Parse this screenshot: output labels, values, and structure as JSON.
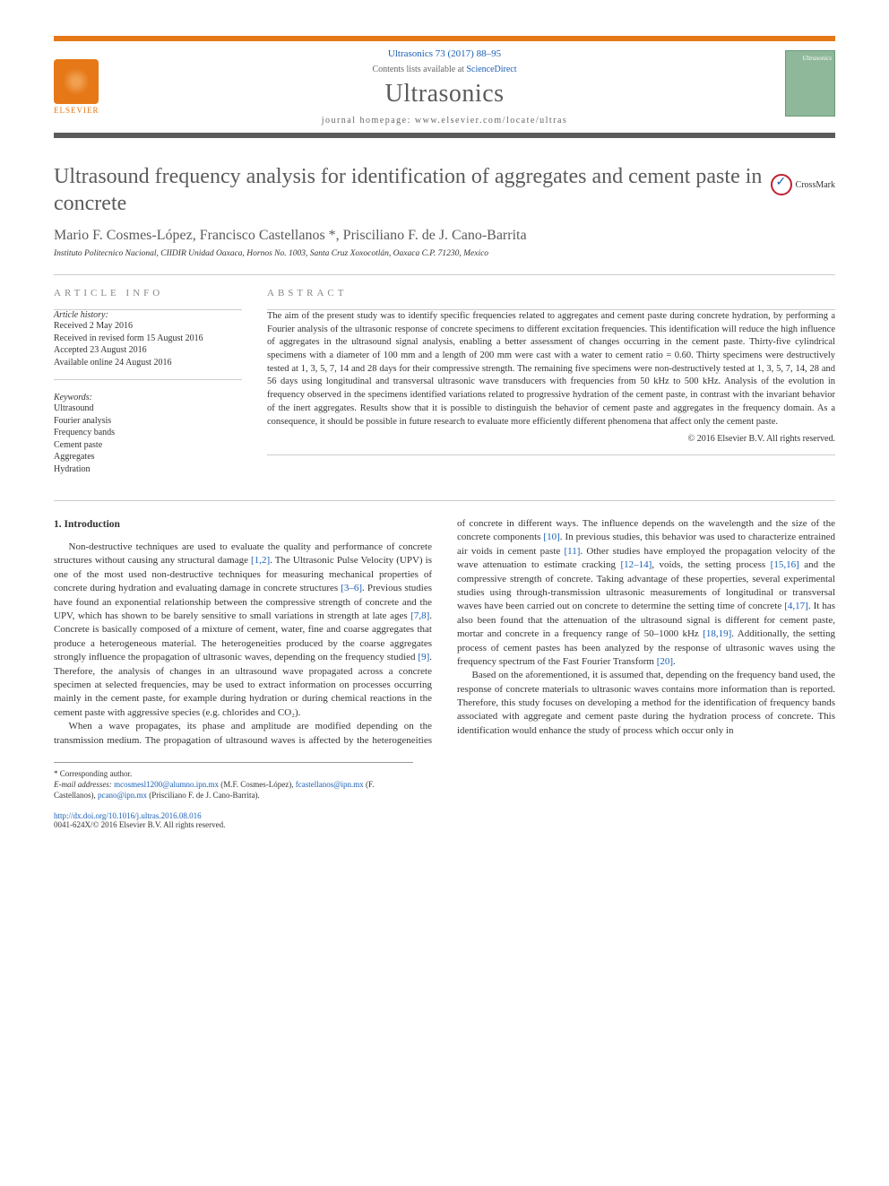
{
  "header": {
    "citation": "Ultrasonics 73 (2017) 88–95",
    "contents_prefix": "Contents lists available at ",
    "contents_link": "ScienceDirect",
    "journal_name": "Ultrasonics",
    "homepage_prefix": "journal homepage: ",
    "homepage_url": "www.elsevier.com/locate/ultras",
    "publisher_logo_label": "ELSEVIER",
    "cover_label": "Ultrasonics",
    "crossmark": "CrossMark"
  },
  "article": {
    "title": "Ultrasound frequency analysis for identification of aggregates and cement paste in concrete",
    "authors": "Mario F. Cosmes-López, Francisco Castellanos *, Prisciliano F. de J. Cano-Barrita",
    "affiliation": "Instituto Politecnico Nacional, CIIDIR Unidad Oaxaca, Hornos No. 1003, Santa Cruz Xoxocotlán, Oaxaca C.P. 71230, Mexico"
  },
  "info": {
    "section_label": "article info",
    "history_label": "Article history:",
    "history": [
      "Received 2 May 2016",
      "Received in revised form 15 August 2016",
      "Accepted 23 August 2016",
      "Available online 24 August 2016"
    ],
    "keywords_label": "Keywords:",
    "keywords": [
      "Ultrasound",
      "Fourier analysis",
      "Frequency bands",
      "Cement paste",
      "Aggregates",
      "Hydration"
    ]
  },
  "abstract": {
    "section_label": "abstract",
    "text": "The aim of the present study was to identify specific frequencies related to aggregates and cement paste during concrete hydration, by performing a Fourier analysis of the ultrasonic response of concrete specimens to different excitation frequencies. This identification will reduce the high influence of aggregates in the ultrasound signal analysis, enabling a better assessment of changes occurring in the cement paste. Thirty-five cylindrical specimens with a diameter of 100 mm and a length of 200 mm were cast with a water to cement ratio = 0.60. Thirty specimens were destructively tested at 1, 3, 5, 7, 14 and 28 days for their compressive strength. The remaining five specimens were non-destructively tested at 1, 3, 5, 7, 14, 28 and 56 days using longitudinal and transversal ultrasonic wave transducers with frequencies from 50 kHz to 500 kHz. Analysis of the evolution in frequency observed in the specimens identified variations related to progressive hydration of the cement paste, in contrast with the invariant behavior of the inert aggregates. Results show that it is possible to distinguish the behavior of cement paste and aggregates in the frequency domain. As a consequence, it should be possible in future research to evaluate more efficiently different phenomena that affect only the cement paste.",
    "copyright": "© 2016 Elsevier B.V. All rights reserved."
  },
  "body": {
    "heading": "1. Introduction",
    "p1a": "Non-destructive techniques are used to evaluate the quality and performance of concrete structures without causing any structural damage ",
    "p1_ref1": "[1,2]",
    "p1b": ". The Ultrasonic Pulse Velocity (UPV) is one of the most used non-destructive techniques for measuring mechanical properties of concrete during hydration and evaluating damage in concrete structures ",
    "p1_ref2": "[3–6]",
    "p1c": ". Previous studies have found an exponential relationship between the compressive strength of concrete and the UPV, which has shown to be barely sensitive to small variations in strength at late ages ",
    "p1_ref3": "[7,8]",
    "p1d": ". Concrete is basically composed of a mixture of cement, water, fine and coarse aggregates that produce a heterogeneous material. The heterogeneities produced by the coarse aggregates strongly influence the propagation of ultrasonic waves, depending on the frequency studied ",
    "p1_ref4": "[9]",
    "p1e": ". Therefore, the analysis of changes in an ultrasound wave propagated across a concrete specimen at selected frequencies, may be used to extract information on processes occurring mainly in the cement paste, for example during hydration or during chemical reactions in the cement paste with aggressive species (e.g. chlorides and CO₂).",
    "p2a": "When a wave propagates, its phase and amplitude are modified depending on the transmission medium. The propagation of ultrasound waves is affected by the heterogeneities of concrete in different ways. The influence depends on the wavelength and the size of the concrete components ",
    "p2_ref1": "[10]",
    "p2b": ". In previous studies, this behavior was used to characterize entrained air voids in cement paste ",
    "p2_ref2": "[11]",
    "p2c": ". Other studies have employed the propagation velocity of the wave attenuation to estimate cracking ",
    "p2_ref3": "[12–14]",
    "p2d": ", voids, the setting process ",
    "p2_ref4": "[15,16]",
    "p2e": " and the compressive strength of concrete. Taking advantage of these properties, several experimental studies using through-transmission ultrasonic measurements of longitudinal or transversal waves have been carried out on concrete to determine the setting time of concrete ",
    "p2_ref5": "[4,17]",
    "p2f": ". It has also been found that the attenuation of the ultrasound signal is different for cement paste, mortar and concrete in a frequency range of 50–1000 kHz ",
    "p2_ref6": "[18,19]",
    "p2g": ". Additionally, the setting process of cement pastes has been analyzed by the response of ultrasonic waves using the frequency spectrum of the Fast Fourier Transform ",
    "p2_ref7": "[20]",
    "p2h": ".",
    "p3": "Based on the aforementioned, it is assumed that, depending on the frequency band used, the response of concrete materials to ultrasonic waves contains more information than is reported. Therefore, this study focuses on developing a method for the identification of frequency bands associated with aggregate and cement paste during the hydration process of concrete. This identification would enhance the study of process which occur only in"
  },
  "footnotes": {
    "corr": "* Corresponding author.",
    "email_label": "E-mail addresses:",
    "e1": "mcosmesl1200@alumno.ipn.mx",
    "n1": " (M.F. Cosmes-López), ",
    "e2": "fcastellanos@ipn.mx",
    "n2": " (F. Castellanos), ",
    "e3": "pcano@ipn.mx",
    "n3": " (Prisciliano F. de J. Cano-Barrita)."
  },
  "bottom": {
    "doi": "http://dx.doi.org/10.1016/j.ultras.2016.08.016",
    "issn_line": "0041-624X/© 2016 Elsevier B.V. All rights reserved."
  },
  "colors": {
    "accent_orange": "#e67817",
    "band_gray": "#5b5b5b",
    "link_blue": "#1a5fb4",
    "cover_green": "#8fb89a"
  }
}
